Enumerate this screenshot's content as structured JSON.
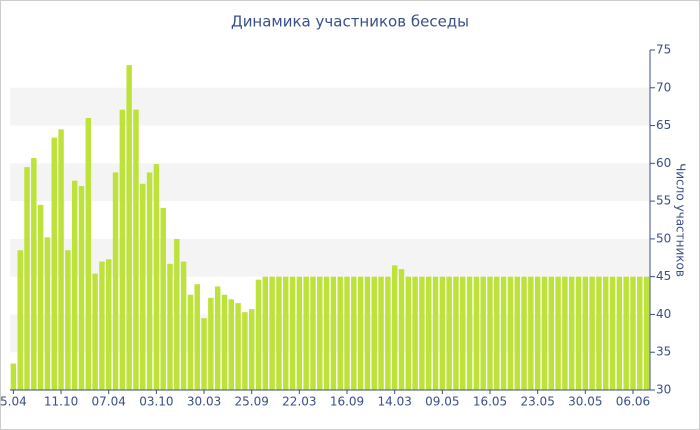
{
  "chart_data": {
    "type": "bar",
    "title": "Динамика участников беседы",
    "y_label": "Число участников",
    "categories": [
      "5.04",
      null,
      null,
      null,
      null,
      null,
      null,
      "11.10",
      null,
      null,
      null,
      null,
      null,
      null,
      "07.04",
      null,
      null,
      null,
      null,
      null,
      null,
      "03.10",
      null,
      null,
      null,
      null,
      null,
      null,
      "30.03",
      null,
      null,
      null,
      null,
      null,
      null,
      "25.09",
      null,
      null,
      null,
      null,
      null,
      null,
      "22.03",
      null,
      null,
      null,
      null,
      null,
      null,
      "16.09",
      null,
      null,
      null,
      null,
      null,
      null,
      "14.03",
      null,
      null,
      null,
      null,
      null,
      null,
      "09.05",
      null,
      null,
      null,
      null,
      null,
      null,
      "16.05",
      null,
      null,
      null,
      null,
      null,
      null,
      "23.05",
      null,
      null,
      null,
      null,
      null,
      null,
      "30.05",
      null,
      null,
      null,
      null,
      null,
      null,
      "06.06",
      null,
      null
    ],
    "values": [
      33.5,
      48.5,
      59.5,
      60.7,
      54.5,
      50.2,
      63.4,
      64.5,
      48.5,
      57.7,
      57,
      66,
      45.4,
      47,
      47.3,
      58.8,
      67.1,
      73,
      67.1,
      57.3,
      58.8,
      59.9,
      54.1,
      46.7,
      50,
      47,
      42.6,
      44,
      39.5,
      42.2,
      43.7,
      42.6,
      42,
      41.5,
      40.3,
      40.7,
      44.6,
      45,
      45,
      45,
      45,
      45,
      45,
      45,
      45,
      45,
      45,
      45,
      45,
      45,
      45,
      45,
      45,
      45,
      45,
      45,
      46.5,
      46,
      45,
      45,
      45,
      45,
      45,
      45,
      45,
      45,
      45,
      45,
      45,
      45,
      45,
      45,
      45,
      45,
      45,
      45,
      45,
      45,
      45,
      45,
      45,
      45,
      45,
      45,
      45,
      45,
      45,
      45,
      45,
      45,
      45,
      45,
      45,
      45
    ],
    "color": "#bde23a",
    "ylim": [
      30,
      75
    ],
    "yticks": [
      30,
      35,
      40,
      45,
      50,
      55,
      60,
      65,
      70,
      75
    ],
    "grid": true,
    "y_axis_side": "right"
  }
}
